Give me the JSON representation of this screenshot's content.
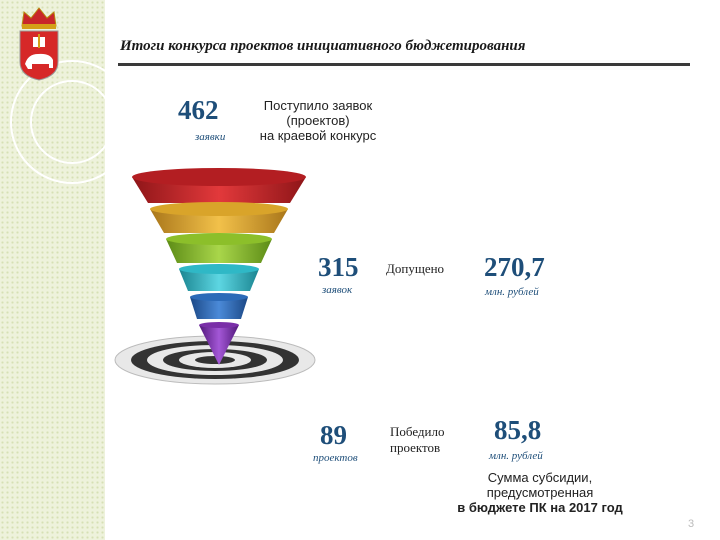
{
  "header": {
    "title": "Итоги конкурса проектов инициативного бюджетирования"
  },
  "stats": {
    "received": {
      "number": "462",
      "unit": "заявки",
      "caption_lines": [
        "Поступило заявок",
        "(проектов)",
        "на краевой конкурс"
      ]
    },
    "admitted": {
      "number": "315",
      "unit": "заявок",
      "caption": "Допущено",
      "sum": "270,7",
      "sum_unit": "млн. рублей"
    },
    "won": {
      "number": "89",
      "unit": "проектов",
      "caption_lines": [
        "Победило",
        "проектов"
      ],
      "sum": "85,8",
      "sum_unit": "млн. рублей"
    }
  },
  "subsidy_caption": {
    "lines": [
      "Сумма субсидии,",
      "предусмотренная"
    ],
    "bold_line": "в бюджете ПК на 2017 год"
  },
  "page_number": "3",
  "colors": {
    "accent_number": "#1e4e79",
    "funnel": [
      "#c8262a",
      "#e0a822",
      "#8cbf2a",
      "#2fb8c6",
      "#2c6ab8",
      "#7a2fa8"
    ]
  },
  "icons": {
    "logo": "perm-krai-coat-of-arms-icon",
    "graphic": "funnel-target-icon"
  }
}
